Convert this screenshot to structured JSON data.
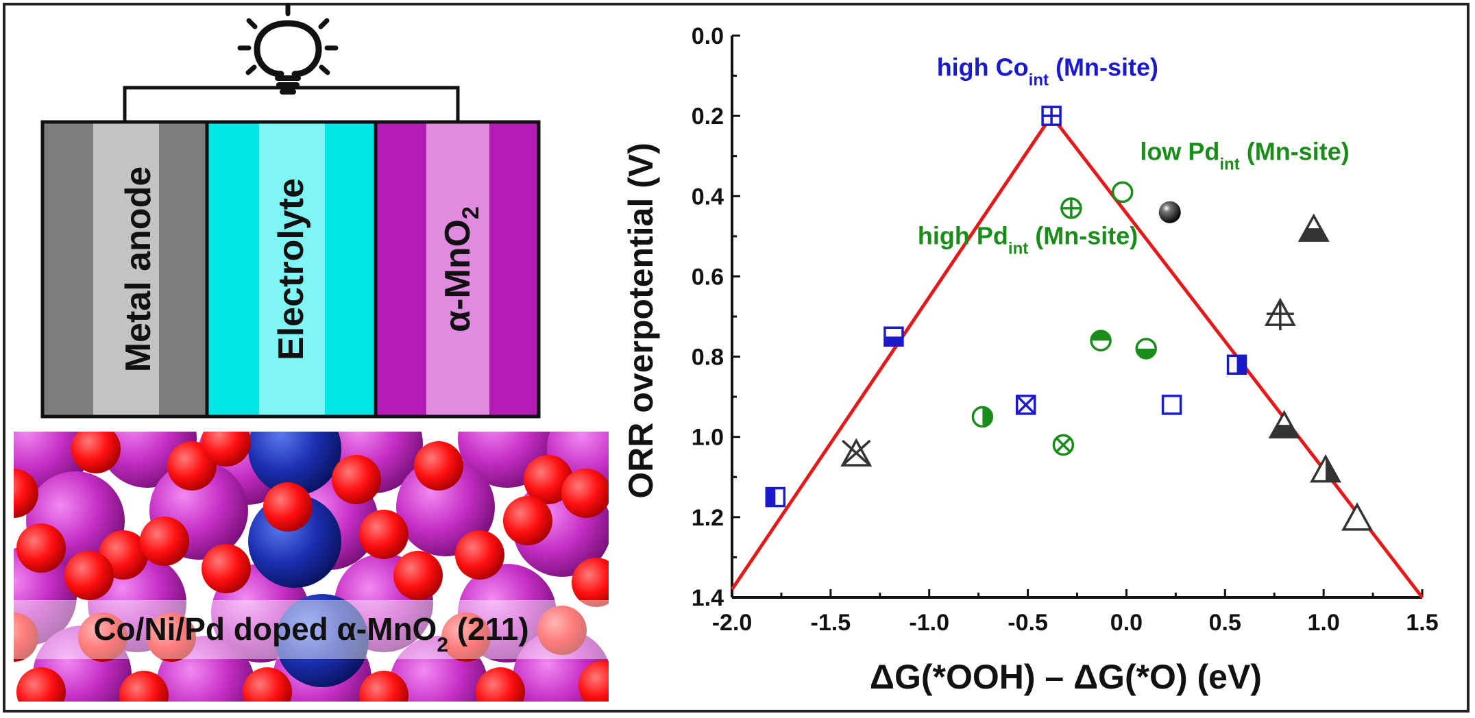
{
  "left_panel": {
    "battery": {
      "anode_label": "Metal anode",
      "electrolyte_label": "Electrolyte",
      "cathode_label": "α-MnO",
      "cathode_label_sub": "2"
    },
    "surface_label": {
      "main": "Co/Ni/Pd doped α-MnO",
      "sub": "2",
      "suffix": " (211)"
    },
    "colors": {
      "anode": "#808080",
      "electrolyte": "#00e5e5",
      "cathode": "#b31fb3",
      "mn_atom": "#cc33cc",
      "o_atom": "#ff1a1a",
      "dopant_atom": "#1a33bb"
    }
  },
  "chart_data": {
    "type": "scatter",
    "title": "",
    "xlabel": "ΔG(*OOH) – ΔG(*O) (eV)",
    "ylabel": "ORR overpotential (V)",
    "xlim": [
      -2.0,
      1.5
    ],
    "ylim": [
      0.0,
      1.4
    ],
    "y_inverted": true,
    "x_ticks": [
      "-2.0",
      "-1.5",
      "-1.0",
      "-0.5",
      "0.0",
      "0.5",
      "1.0",
      "1.5"
    ],
    "y_ticks": [
      "0.0",
      "0.2",
      "0.4",
      "0.6",
      "0.8",
      "1.0",
      "1.2",
      "1.4"
    ],
    "grid": false,
    "volcano_line": {
      "color": "#e31a1a",
      "points": [
        [
          -2.0,
          1.38
        ],
        [
          -0.38,
          0.2
        ],
        [
          1.5,
          1.4
        ]
      ]
    },
    "points": [
      {
        "x": -0.38,
        "y": 0.2,
        "marker": "square-plus",
        "color": "#1a1acc"
      },
      {
        "x": -1.18,
        "y": 0.75,
        "marker": "square-bottom-half",
        "color": "#1a1acc"
      },
      {
        "x": -1.78,
        "y": 1.15,
        "marker": "square-left-half",
        "color": "#1a1acc"
      },
      {
        "x": -0.51,
        "y": 0.92,
        "marker": "square-x",
        "color": "#1a1acc"
      },
      {
        "x": 0.23,
        "y": 0.92,
        "marker": "square-open",
        "color": "#1a1acc"
      },
      {
        "x": 0.56,
        "y": 0.82,
        "marker": "square-right-half",
        "color": "#1a1acc"
      },
      {
        "x": -0.28,
        "y": 0.43,
        "marker": "circle-plus",
        "color": "#1a8c1a"
      },
      {
        "x": -0.02,
        "y": 0.39,
        "marker": "circle-open",
        "color": "#1a8c1a"
      },
      {
        "x": -0.13,
        "y": 0.76,
        "marker": "circle-top-half",
        "color": "#1a8c1a"
      },
      {
        "x": 0.1,
        "y": 0.78,
        "marker": "circle-bottom-half",
        "color": "#1a8c1a"
      },
      {
        "x": -0.73,
        "y": 0.95,
        "marker": "circle-right-half",
        "color": "#1a8c1a"
      },
      {
        "x": -0.32,
        "y": 1.02,
        "marker": "circle-x",
        "color": "#1a8c1a"
      },
      {
        "x": 0.22,
        "y": 0.44,
        "marker": "sphere-filled",
        "color": "#111111"
      },
      {
        "x": 0.95,
        "y": 0.48,
        "marker": "triangle-bottom-half",
        "color": "#333333"
      },
      {
        "x": 0.78,
        "y": 0.69,
        "marker": "triangle-plus",
        "color": "#333333"
      },
      {
        "x": 0.8,
        "y": 0.97,
        "marker": "triangle-bottom-half",
        "color": "#333333"
      },
      {
        "x": 1.01,
        "y": 1.08,
        "marker": "triangle-right-half",
        "color": "#333333"
      },
      {
        "x": 1.17,
        "y": 1.2,
        "marker": "triangle-open",
        "color": "#333333"
      },
      {
        "x": -1.37,
        "y": 1.04,
        "marker": "triangle-x",
        "color": "#333333"
      }
    ],
    "annotations": [
      {
        "text": "high Co",
        "sub": "int",
        "suffix": " (Mn-site)",
        "color": "#1a1acc",
        "x": -0.4,
        "y": 0.1
      },
      {
        "text": "low Pd",
        "sub": "int",
        "suffix": " (Mn-site)",
        "color": "#1a8c1a",
        "x": 0.6,
        "y": 0.31
      },
      {
        "text": "high Pd",
        "sub": "int",
        "suffix": " (Mn-site)",
        "color": "#1a8c1a",
        "x": -0.5,
        "y": 0.52
      }
    ]
  }
}
